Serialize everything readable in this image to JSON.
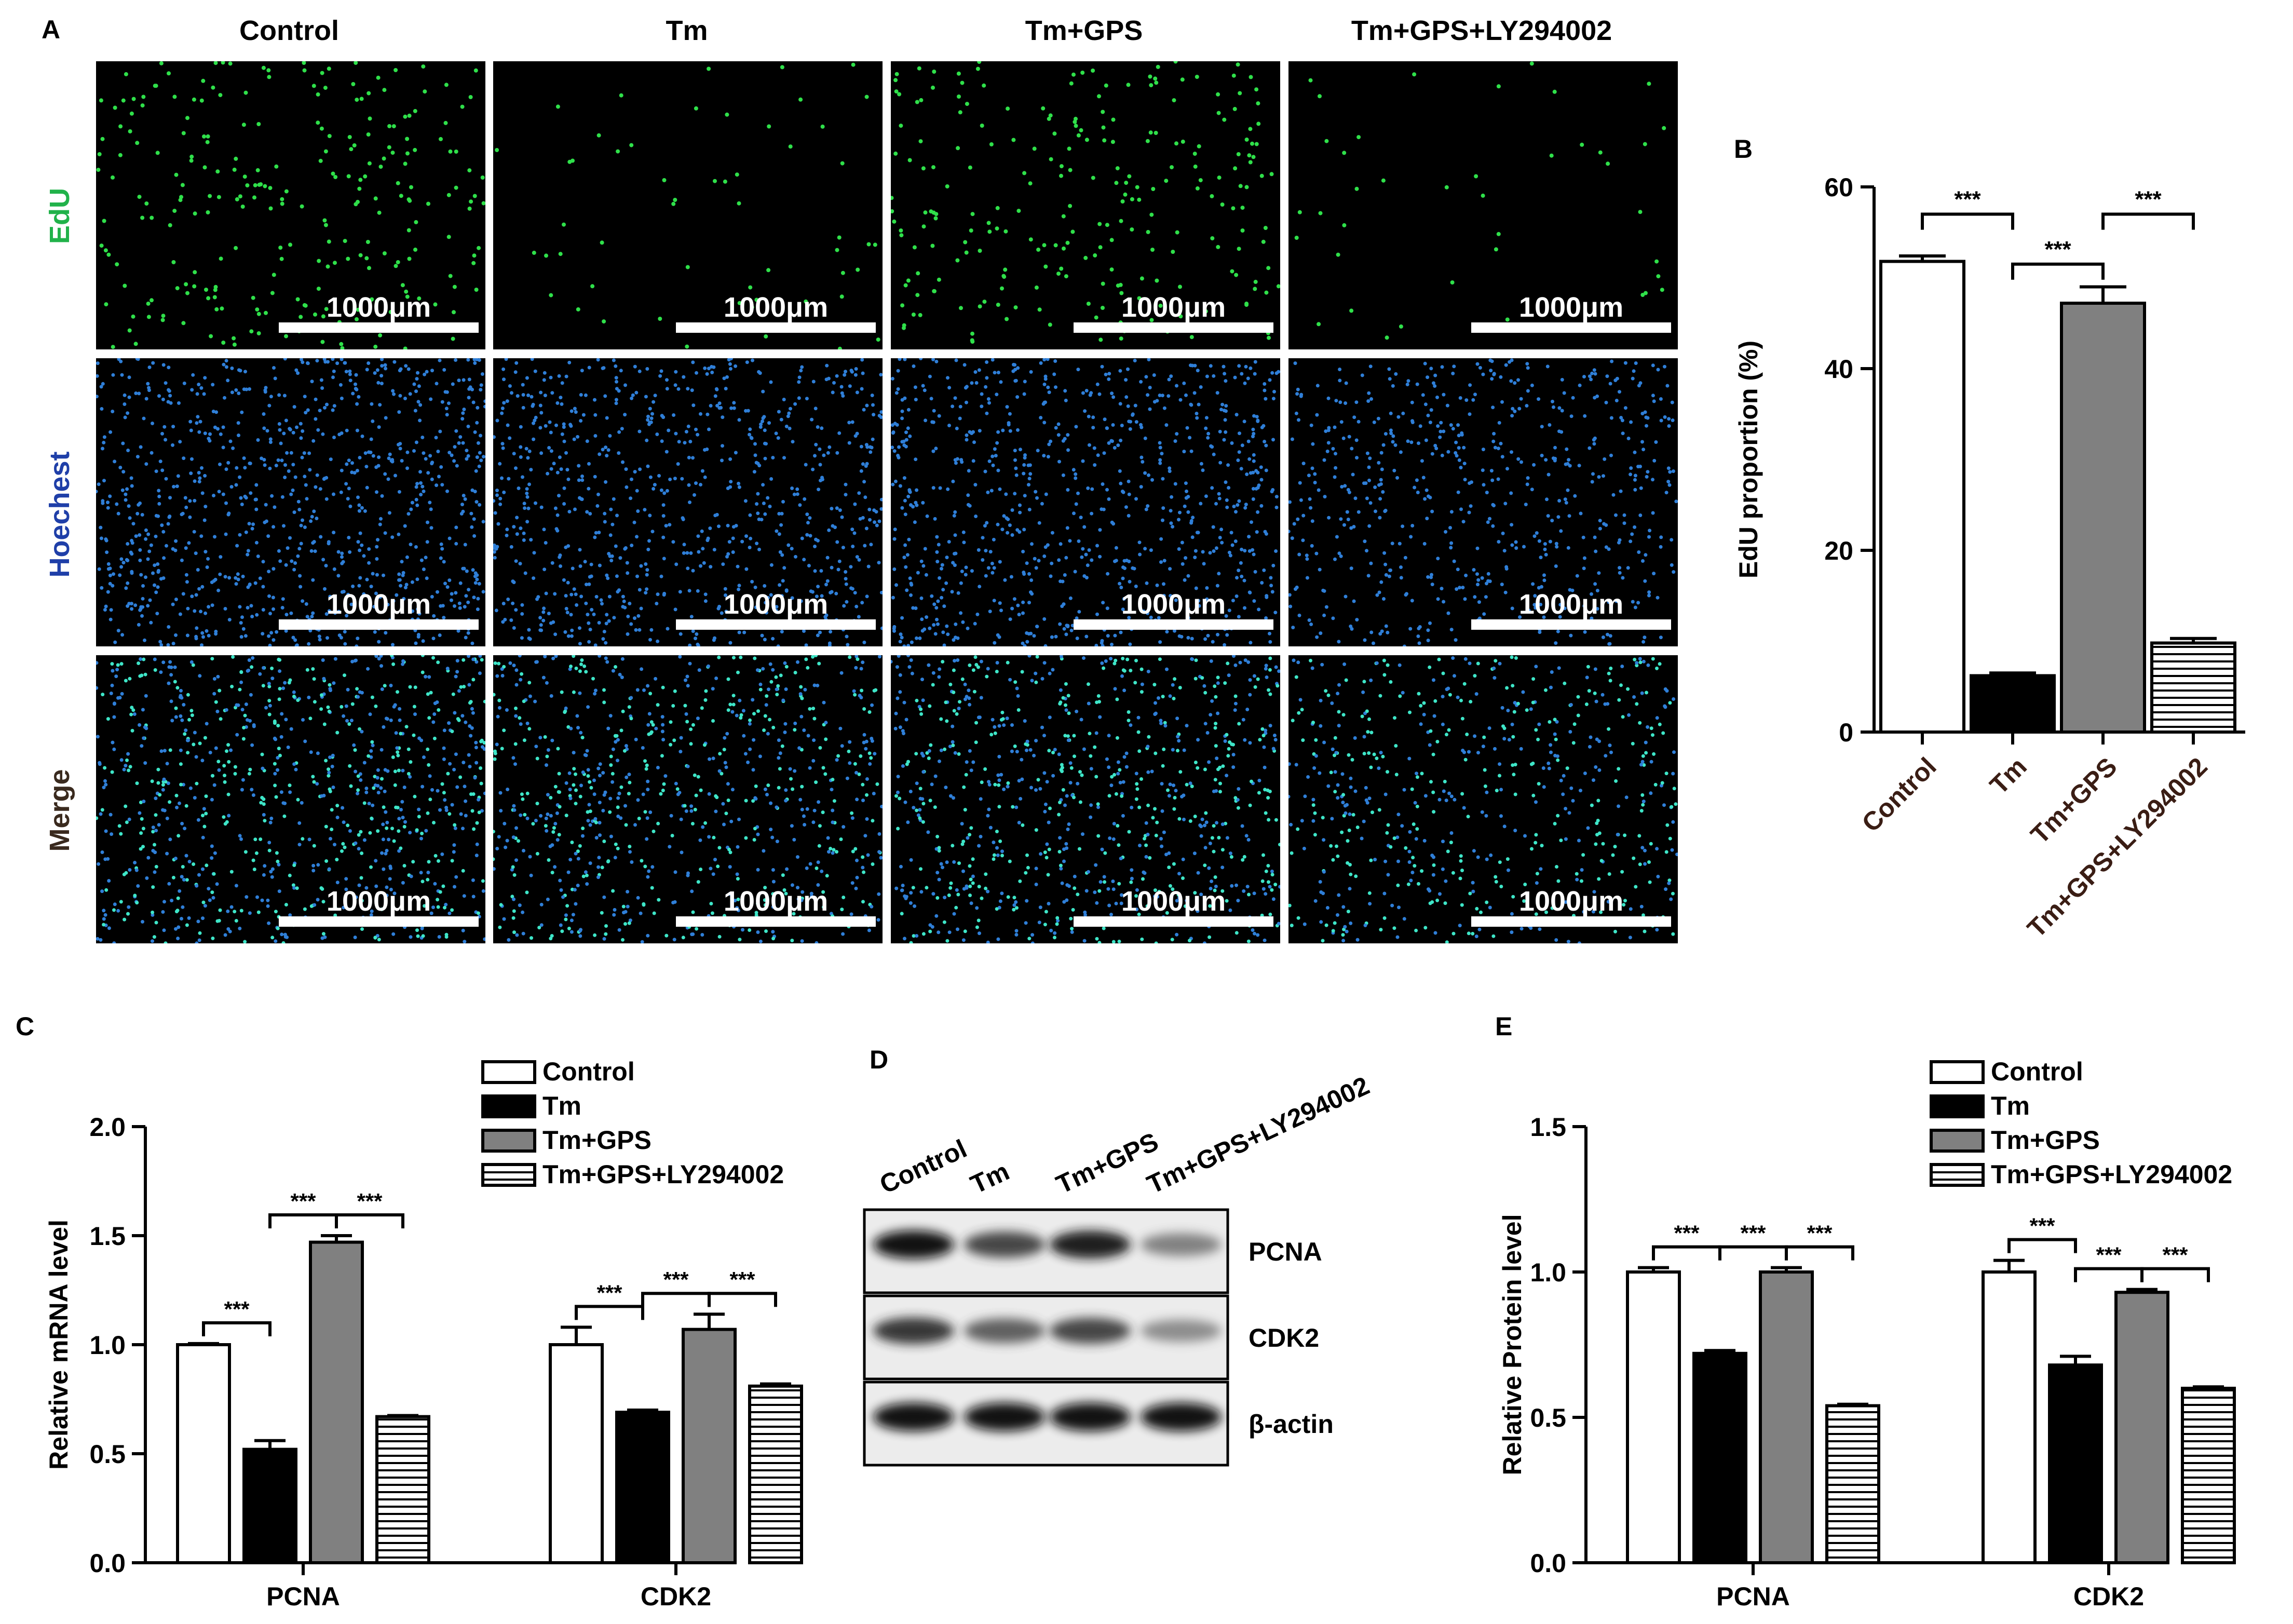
{
  "panels": {
    "a": "A",
    "b": "B",
    "c": "C",
    "d": "D",
    "e": "E"
  },
  "groups": [
    "Control",
    "Tm",
    "Tm+GPS",
    "Tm+GPS+LY294002"
  ],
  "micrograph": {
    "rows": [
      "EdU",
      "Hoechest",
      "Merge"
    ],
    "row_colors": [
      "#21b24a",
      "#1f3fa8",
      "#3a2a1e"
    ],
    "scale_label": "1000μm"
  },
  "sig": "***",
  "chart_data": [
    {
      "id": "B",
      "type": "bar",
      "categories": [
        "Control",
        "Tm",
        "Tm+GPS",
        "Tm+GPS+LY294002"
      ],
      "values": [
        51.8,
        6.2,
        47.2,
        9.8
      ],
      "errors": [
        0.6,
        0.3,
        1.8,
        0.5
      ],
      "fills": [
        "#ffffff",
        "#000000",
        "#808080",
        "stripes"
      ],
      "ylabel": "EdU proportion (%)",
      "ylim": [
        0,
        60
      ],
      "yticks": [
        0,
        20,
        40,
        60
      ],
      "significance": [
        {
          "from": 0,
          "to": 1,
          "label": "***"
        },
        {
          "from": 1,
          "to": 2,
          "label": "***"
        },
        {
          "from": 2,
          "to": 3,
          "label": "***"
        }
      ]
    },
    {
      "id": "C",
      "type": "bar",
      "categories": [
        "PCNA",
        "CDK2"
      ],
      "series": [
        {
          "name": "Control",
          "values": [
            1.0,
            1.0
          ],
          "errors": [
            0.005,
            0.08
          ],
          "fill": "#ffffff"
        },
        {
          "name": "Tm",
          "values": [
            0.52,
            0.69
          ],
          "errors": [
            0.04,
            0.01
          ],
          "fill": "#000000"
        },
        {
          "name": "Tm+GPS",
          "values": [
            1.47,
            1.07
          ],
          "errors": [
            0.03,
            0.07
          ],
          "fill": "#808080"
        },
        {
          "name": "Tm+GPS+LY294002",
          "values": [
            0.67,
            0.81
          ],
          "errors": [
            0.005,
            0.01
          ],
          "fill": "stripes"
        }
      ],
      "ylabel": "Relative mRNA level",
      "ylim": [
        0,
        2.0
      ],
      "yticks": [
        "0.0",
        "0.5",
        "1.0",
        "1.5",
        "2.0"
      ],
      "significance": [
        {
          "cat": 0,
          "from": 0,
          "to": 1,
          "label": "***"
        },
        {
          "cat": 0,
          "from": 1,
          "to": 2,
          "label": "***"
        },
        {
          "cat": 0,
          "from": 2,
          "to": 3,
          "label": "***"
        },
        {
          "cat": 1,
          "from": 0,
          "to": 1,
          "label": "***"
        },
        {
          "cat": 1,
          "from": 1,
          "to": 2,
          "label": "***"
        },
        {
          "cat": 1,
          "from": 2,
          "to": 3,
          "label": "***"
        }
      ]
    },
    {
      "id": "E",
      "type": "bar",
      "categories": [
        "PCNA",
        "CDK2"
      ],
      "series": [
        {
          "name": "Control",
          "values": [
            1.0,
            1.0
          ],
          "errors": [
            0.015,
            0.04
          ],
          "fill": "#ffffff"
        },
        {
          "name": "Tm",
          "values": [
            0.72,
            0.68
          ],
          "errors": [
            0.01,
            0.03
          ],
          "fill": "#000000"
        },
        {
          "name": "Tm+GPS",
          "values": [
            1.0,
            0.93
          ],
          "errors": [
            0.015,
            0.01
          ],
          "fill": "#808080"
        },
        {
          "name": "Tm+GPS+LY294002",
          "values": [
            0.54,
            0.6
          ],
          "errors": [
            0.005,
            0.005
          ],
          "fill": "stripes"
        }
      ],
      "ylabel": "Relative Protein level",
      "ylim": [
        0,
        1.5
      ],
      "yticks": [
        "0.0",
        "0.5",
        "1.0",
        "1.5"
      ],
      "significance": [
        {
          "cat": 0,
          "from": 0,
          "to": 1,
          "label": "***"
        },
        {
          "cat": 0,
          "from": 1,
          "to": 2,
          "label": "***"
        },
        {
          "cat": 0,
          "from": 2,
          "to": 3,
          "label": "***"
        },
        {
          "cat": 1,
          "from": 0,
          "to": 1,
          "label": "***"
        },
        {
          "cat": 1,
          "from": 1,
          "to": 2,
          "label": "***"
        },
        {
          "cat": 1,
          "from": 2,
          "to": 3,
          "label": "***"
        }
      ]
    }
  ],
  "western": {
    "lanes": [
      "Control",
      "Tm",
      "Tm+GPS",
      "Tm+GPS+LY294002"
    ],
    "proteins": [
      "PCNA",
      "CDK2",
      "β-actin"
    ],
    "intensity": [
      [
        0.95,
        0.75,
        0.9,
        0.5
      ],
      [
        0.8,
        0.65,
        0.75,
        0.45
      ],
      [
        0.95,
        0.95,
        0.95,
        0.95
      ]
    ]
  }
}
